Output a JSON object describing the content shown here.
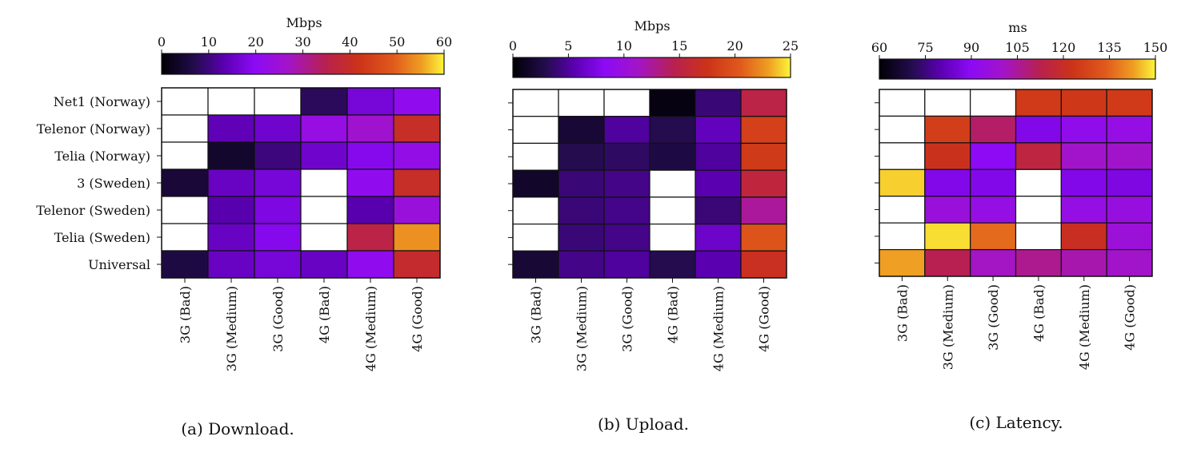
{
  "chart_data": [
    {
      "type": "heatmap",
      "caption": "(a) Download.",
      "colorbar_label": "Mbps",
      "colorbar_ticks": [
        0,
        10,
        20,
        30,
        40,
        50,
        60
      ],
      "vmin": 0,
      "vmax": 60,
      "rows": [
        "Net1 (Norway)",
        "Telenor (Norway)",
        "Telia (Norway)",
        "3 (Sweden)",
        "Telenor (Sweden)",
        "Telia (Sweden)",
        "Universal"
      ],
      "columns": [
        "3G (Bad)",
        "3G (Medium)",
        "3G (Good)",
        "4G (Bad)",
        "4G (Medium)",
        "4G (Good)"
      ],
      "values": [
        [
          null,
          null,
          null,
          8,
          17,
          21
        ],
        [
          null,
          14,
          16,
          23,
          26,
          40
        ],
        [
          null,
          4,
          10,
          16,
          19,
          22
        ],
        [
          5,
          15,
          17,
          null,
          21,
          40
        ],
        [
          null,
          13,
          18,
          null,
          13,
          24
        ],
        [
          null,
          15,
          19,
          null,
          36,
          54
        ],
        [
          6,
          15,
          17,
          15,
          21,
          39
        ]
      ]
    },
    {
      "type": "heatmap",
      "caption": "(b) Upload.",
      "colorbar_label": "Mbps",
      "colorbar_ticks": [
        0,
        5,
        10,
        15,
        20,
        25
      ],
      "vmin": 0,
      "vmax": 25,
      "rows": [
        "Net1 (Norway)",
        "Telenor (Norway)",
        "Telia (Norway)",
        "3 (Sweden)",
        "Telenor (Sweden)",
        "Telia (Sweden)",
        "Universal"
      ],
      "columns": [
        "3G (Bad)",
        "3G (Medium)",
        "3G (Good)",
        "4G (Bad)",
        "4G (Medium)",
        "4G (Good)"
      ],
      "values": [
        [
          null,
          null,
          null,
          0.5,
          4,
          15
        ],
        [
          null,
          2,
          5,
          3,
          6,
          18.5
        ],
        [
          null,
          3,
          3.5,
          2.5,
          5,
          18
        ],
        [
          1.5,
          4,
          4.5,
          null,
          5.5,
          15.5
        ],
        [
          null,
          4,
          4.5,
          null,
          4,
          12.5
        ],
        [
          null,
          4,
          4.5,
          null,
          6.5,
          20
        ],
        [
          2,
          4.5,
          5,
          3,
          5.5,
          17
        ]
      ]
    },
    {
      "type": "heatmap",
      "caption": "(c) Latency.",
      "colorbar_label": "ms",
      "colorbar_ticks": [
        60,
        75,
        90,
        105,
        120,
        135,
        150
      ],
      "vmin": 60,
      "vmax": 150,
      "rows": [
        "Net1 (Norway)",
        "Telenor (Norway)",
        "Telia (Norway)",
        "3 (Sweden)",
        "Telenor (Sweden)",
        "Telia (Sweden)",
        "Universal"
      ],
      "columns": [
        "3G (Bad)",
        "3G (Medium)",
        "3G (Good)",
        "4G (Bad)",
        "4G (Medium)",
        "4G (Good)"
      ],
      "values": [
        [
          null,
          null,
          null,
          125,
          124,
          125
        ],
        [
          null,
          126,
          110,
          88,
          92,
          94
        ],
        [
          null,
          122,
          90,
          115,
          100,
          100
        ],
        [
          147,
          88,
          88,
          null,
          88,
          87
        ],
        [
          null,
          96,
          94,
          null,
          94,
          95
        ],
        [
          null,
          148,
          136,
          null,
          121,
          97
        ],
        [
          143,
          112,
          101,
          106,
          103,
          100
        ]
      ]
    }
  ]
}
